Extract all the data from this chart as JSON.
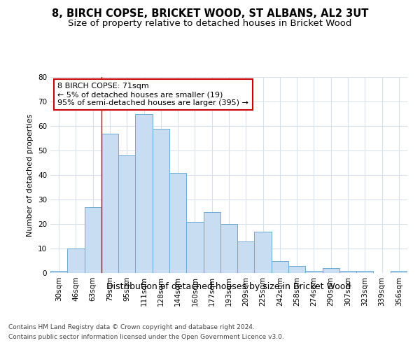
{
  "title1": "8, BIRCH COPSE, BRICKET WOOD, ST ALBANS, AL2 3UT",
  "title2": "Size of property relative to detached houses in Bricket Wood",
  "xlabel": "Distribution of detached houses by size in Bricket Wood",
  "ylabel": "Number of detached properties",
  "categories": [
    "30sqm",
    "46sqm",
    "63sqm",
    "79sqm",
    "95sqm",
    "111sqm",
    "128sqm",
    "144sqm",
    "160sqm",
    "177sqm",
    "193sqm",
    "209sqm",
    "225sqm",
    "242sqm",
    "258sqm",
    "274sqm",
    "290sqm",
    "307sqm",
    "323sqm",
    "339sqm",
    "356sqm"
  ],
  "values": [
    1,
    10,
    27,
    57,
    48,
    65,
    59,
    41,
    21,
    25,
    20,
    13,
    17,
    5,
    3,
    1,
    2,
    1,
    1,
    0,
    1
  ],
  "bar_color": "#c8ddf2",
  "bar_edge_color": "#6aaad4",
  "vline_x_index": 2.5,
  "vline_color": "#cc0000",
  "annotation_text": "8 BIRCH COPSE: 71sqm\n← 5% of detached houses are smaller (19)\n95% of semi-detached houses are larger (395) →",
  "annotation_box_facecolor": "#ffffff",
  "annotation_box_edgecolor": "#cc0000",
  "ylim": [
    0,
    80
  ],
  "yticks": [
    0,
    10,
    20,
    30,
    40,
    50,
    60,
    70,
    80
  ],
  "footer1": "Contains HM Land Registry data © Crown copyright and database right 2024.",
  "footer2": "Contains public sector information licensed under the Open Government Licence v3.0.",
  "fig_facecolor": "#ffffff",
  "plot_facecolor": "#ffffff",
  "grid_color": "#d8e0ed",
  "title1_fontsize": 10.5,
  "title2_fontsize": 9.5,
  "xlabel_fontsize": 9,
  "ylabel_fontsize": 8,
  "tick_fontsize": 7.5,
  "annotation_fontsize": 8,
  "footer_fontsize": 6.5
}
